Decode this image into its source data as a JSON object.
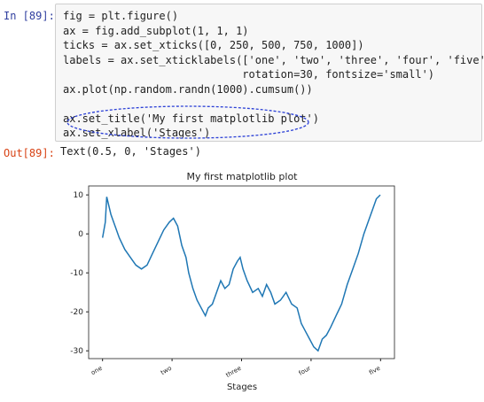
{
  "cell": {
    "in_prompt": "In [89]:",
    "code": [
      "fig = plt.figure()",
      "ax = fig.add_subplot(1, 1, 1)",
      "ticks = ax.set_xticks([0, 250, 500, 750, 1000])",
      "labels = ax.set_xticklabels(['one', 'two', 'three', 'four', 'five'],",
      "                            rotation=30, fontsize='small')",
      "ax.plot(np.random.randn(1000).cumsum())",
      "",
      "ax.set_title('My first matplotlib plot')",
      "ax.set_xlabel('Stages')"
    ],
    "out_prompt": "Out[89]:",
    "output": "Text(0.5, 0, 'Stages')"
  },
  "chart_data": {
    "type": "line",
    "title": "My first matplotlib plot",
    "xlabel": "Stages",
    "x": [
      0,
      10,
      15,
      30,
      45,
      60,
      80,
      100,
      120,
      140,
      160,
      180,
      200,
      220,
      240,
      255,
      270,
      285,
      300,
      310,
      325,
      340,
      355,
      370,
      380,
      395,
      410,
      425,
      440,
      455,
      470,
      485,
      495,
      505,
      520,
      540,
      560,
      575,
      590,
      605,
      620,
      640,
      660,
      680,
      700,
      715,
      730,
      745,
      760,
      775,
      790,
      805,
      820,
      840,
      860,
      880,
      900,
      920,
      940,
      955,
      970,
      985,
      999
    ],
    "series": [
      {
        "color": "#1f77b4",
        "values": [
          -1,
          3,
          9.5,
          5,
          2,
          -1,
          -4,
          -6,
          -8,
          -9,
          -8,
          -5,
          -2,
          1,
          3,
          4,
          2,
          -3,
          -6,
          -10,
          -14,
          -17,
          -19,
          -21,
          -19,
          -18,
          -15,
          -12,
          -14,
          -13,
          -9,
          -7,
          -6,
          -9,
          -12,
          -15,
          -14,
          -16,
          -13,
          -15,
          -18,
          -17,
          -15,
          -18,
          -19,
          -23,
          -25,
          -27,
          -29,
          -30,
          -27,
          -26,
          -24,
          -21,
          -18,
          -13,
          -9,
          -5,
          0,
          3,
          6,
          9,
          10
        ]
      }
    ],
    "xlim": [
      -50,
      1050
    ],
    "ylim": [
      -32,
      12.3
    ],
    "xticks": [
      {
        "value": 0,
        "label": "one"
      },
      {
        "value": 250,
        "label": "two"
      },
      {
        "value": 500,
        "label": "three"
      },
      {
        "value": 750,
        "label": "four"
      },
      {
        "value": 1000,
        "label": "five"
      }
    ],
    "yticks": [
      10,
      0,
      -10,
      -20,
      -30
    ]
  }
}
